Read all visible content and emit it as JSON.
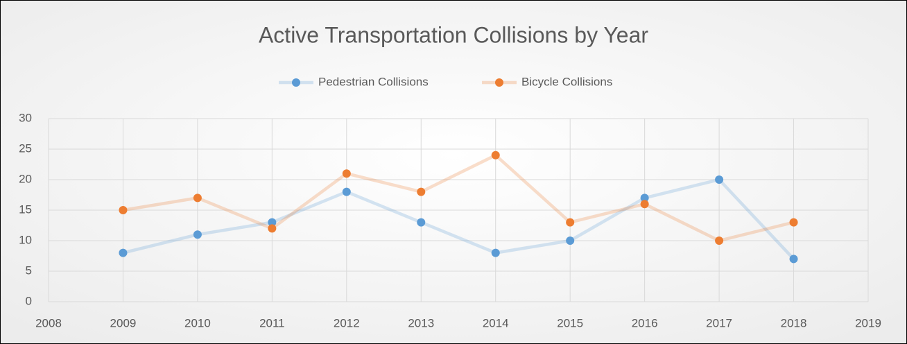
{
  "chart_data": {
    "type": "line",
    "title": "Active Transportation Collisions by Year",
    "x": [
      2009,
      2010,
      2011,
      2012,
      2013,
      2014,
      2015,
      2016,
      2017,
      2018
    ],
    "series": [
      {
        "name": "Pedestrian Collisions",
        "color": "#5b9bd5",
        "values": [
          8,
          11,
          13,
          18,
          13,
          8,
          10,
          17,
          20,
          7
        ]
      },
      {
        "name": "Bicycle Collisions",
        "color": "#ed7d31",
        "values": [
          15,
          17,
          12,
          21,
          18,
          24,
          13,
          16,
          10,
          13
        ]
      }
    ],
    "xlim": [
      2008,
      2019
    ],
    "xticks": [
      2008,
      2009,
      2010,
      2011,
      2012,
      2013,
      2014,
      2015,
      2016,
      2017,
      2018,
      2019
    ],
    "ylim": [
      0,
      30
    ],
    "yticks": [
      0,
      5,
      10,
      15,
      20,
      25,
      30
    ],
    "grid": true,
    "legend": "top"
  }
}
